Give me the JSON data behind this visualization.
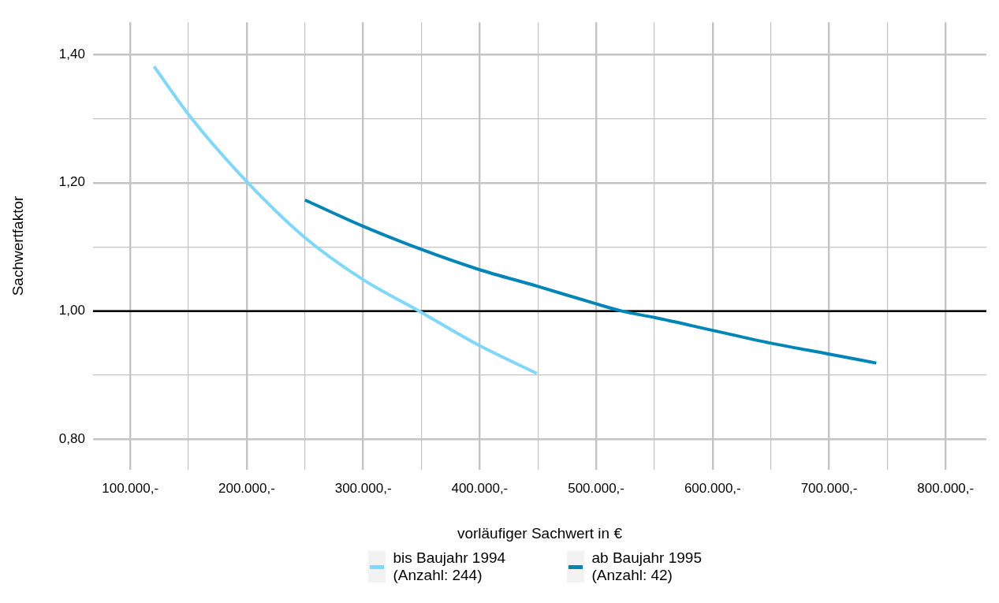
{
  "chart_data": {
    "type": "line",
    "xlabel": "vorläufiger Sachwert in €",
    "ylabel": "Sachwertfaktor",
    "xlim": [
      68000,
      835000
    ],
    "ylim": [
      0.753,
      1.45
    ],
    "xticks": [
      {
        "value": 100000,
        "label": "100.000,-"
      },
      {
        "value": 150000,
        "label": null
      },
      {
        "value": 200000,
        "label": "200.000,-"
      },
      {
        "value": 250000,
        "label": null
      },
      {
        "value": 300000,
        "label": "300.000,-"
      },
      {
        "value": 350000,
        "label": null
      },
      {
        "value": 400000,
        "label": "400.000,-"
      },
      {
        "value": 450000,
        "label": null
      },
      {
        "value": 500000,
        "label": "500.000,-"
      },
      {
        "value": 550000,
        "label": null
      },
      {
        "value": 600000,
        "label": "600.000,-"
      },
      {
        "value": 650000,
        "label": null
      },
      {
        "value": 700000,
        "label": "700.000,-"
      },
      {
        "value": 750000,
        "label": null
      },
      {
        "value": 800000,
        "label": "800.000,-"
      }
    ],
    "yticks": [
      {
        "value": 0.8,
        "label": "0,80"
      },
      {
        "value": 0.9,
        "label": null
      },
      {
        "value": 1.0,
        "label": "1,00"
      },
      {
        "value": 1.1,
        "label": null
      },
      {
        "value": 1.2,
        "label": "1,20"
      },
      {
        "value": 1.3,
        "label": null
      },
      {
        "value": 1.4,
        "label": "1,40"
      }
    ],
    "grid": true,
    "legend": "bottom",
    "marker": "none",
    "line_style": "solid",
    "ref_lines": [
      {
        "axis": "y",
        "value": 1.0,
        "label": null,
        "color": "#000000"
      }
    ],
    "series": [
      {
        "name": "bis Baujahr 1994 (Anzahl: 244)",
        "color": "#7dd8fb",
        "x": [
          120500,
          151000,
          201000,
          249000,
          299000,
          348000,
          399000,
          449000
        ],
        "values": [
          1.381,
          1.304,
          1.2,
          1.116,
          1.05,
          1.0,
          0.947,
          0.903
        ]
      },
      {
        "name": "ab Baujahr 1995 (Anzahl: 42)",
        "color": "#0085b8",
        "x": [
          250000,
          300000,
          350000,
          399000,
          449000,
          500500,
          522000,
          550000,
          600000,
          650000,
          700000,
          740500
        ],
        "values": [
          1.173,
          1.132,
          1.096,
          1.065,
          1.039,
          1.011,
          1.0,
          0.99,
          0.97,
          0.95,
          0.933,
          0.919
        ]
      }
    ]
  }
}
